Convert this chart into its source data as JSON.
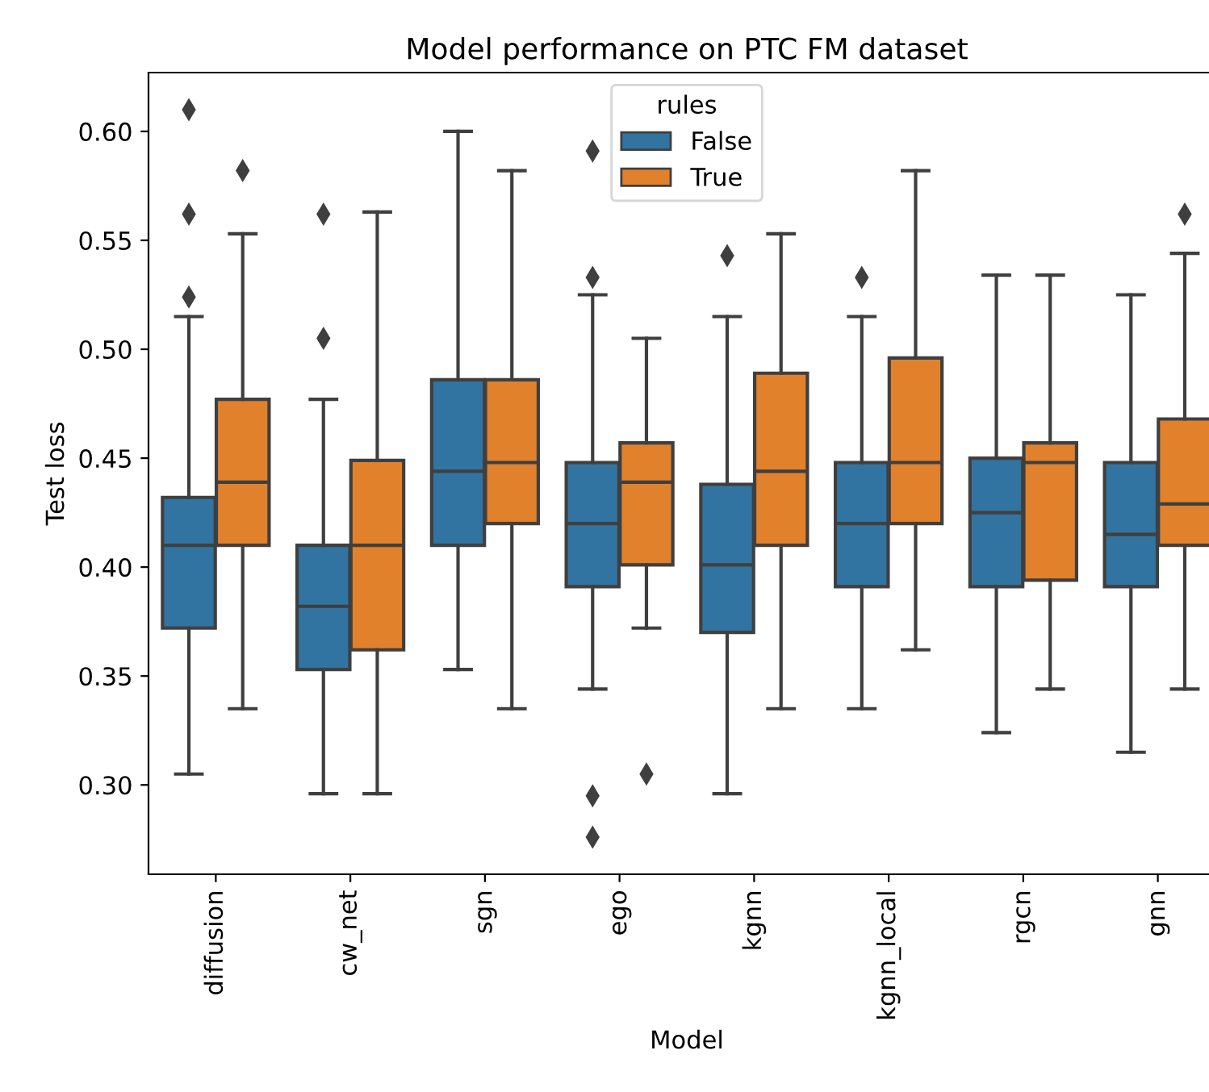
{
  "chart_data": {
    "type": "box",
    "title": "Model performance on PTC FM dataset",
    "xlabel": "Model",
    "ylabel": "Test loss",
    "legend_title": "rules",
    "legend": "top",
    "categories": [
      "diffusion",
      "cw_net",
      "sgn",
      "ego",
      "kgnn",
      "kgnn_local",
      "rgcn",
      "gnn"
    ],
    "ylim": [
      0.259,
      0.627
    ],
    "yticks": [
      {
        "value": 0.3,
        "label": "0.30"
      },
      {
        "value": 0.35,
        "label": "0.35"
      },
      {
        "value": 0.4,
        "label": "0.40"
      },
      {
        "value": 0.45,
        "label": "0.45"
      },
      {
        "value": 0.5,
        "label": "0.50"
      },
      {
        "value": 0.55,
        "label": "0.55"
      },
      {
        "value": 0.6,
        "label": "0.60"
      }
    ],
    "marker": "diamond",
    "grid": false,
    "series": [
      {
        "name": "False",
        "color": "#3274a1",
        "boxes": [
          {
            "low": 0.305,
            "q1": 0.372,
            "median": 0.41,
            "q3": 0.432,
            "high": 0.515,
            "outliers": [
              0.61,
              0.562,
              0.524
            ]
          },
          {
            "low": 0.296,
            "q1": 0.353,
            "median": 0.382,
            "q3": 0.41,
            "high": 0.477,
            "outliers": [
              0.562,
              0.505
            ]
          },
          {
            "low": 0.353,
            "q1": 0.41,
            "median": 0.444,
            "q3": 0.486,
            "high": 0.6
          },
          {
            "low": 0.344,
            "q1": 0.391,
            "median": 0.42,
            "q3": 0.448,
            "high": 0.525,
            "outliers": [
              0.591,
              0.533,
              0.295,
              0.276
            ]
          },
          {
            "low": 0.296,
            "q1": 0.37,
            "median": 0.401,
            "q3": 0.438,
            "high": 0.515,
            "outliers": [
              0.543
            ]
          },
          {
            "low": 0.335,
            "q1": 0.391,
            "median": 0.42,
            "q3": 0.448,
            "high": 0.515,
            "outliers": [
              0.533
            ]
          },
          {
            "low": 0.324,
            "q1": 0.391,
            "median": 0.425,
            "q3": 0.45,
            "high": 0.534
          },
          {
            "low": 0.315,
            "q1": 0.391,
            "median": 0.415,
            "q3": 0.448,
            "high": 0.525
          }
        ]
      },
      {
        "name": "True",
        "color": "#e1812c",
        "boxes": [
          {
            "low": 0.335,
            "q1": 0.41,
            "median": 0.439,
            "q3": 0.477,
            "high": 0.553,
            "outliers": [
              0.582
            ]
          },
          {
            "low": 0.296,
            "q1": 0.362,
            "median": 0.41,
            "q3": 0.449,
            "high": 0.563
          },
          {
            "low": 0.335,
            "q1": 0.42,
            "median": 0.448,
            "q3": 0.486,
            "high": 0.582
          },
          {
            "low": 0.372,
            "q1": 0.401,
            "median": 0.439,
            "q3": 0.457,
            "high": 0.505,
            "outliers": [
              0.305
            ]
          },
          {
            "low": 0.335,
            "q1": 0.41,
            "median": 0.444,
            "q3": 0.489,
            "high": 0.553
          },
          {
            "low": 0.362,
            "q1": 0.42,
            "median": 0.448,
            "q3": 0.496,
            "high": 0.582
          },
          {
            "low": 0.344,
            "q1": 0.394,
            "median": 0.448,
            "q3": 0.457,
            "high": 0.534
          },
          {
            "low": 0.344,
            "q1": 0.41,
            "median": 0.429,
            "q3": 0.468,
            "high": 0.544,
            "outliers": [
              0.562
            ]
          }
        ]
      }
    ]
  }
}
